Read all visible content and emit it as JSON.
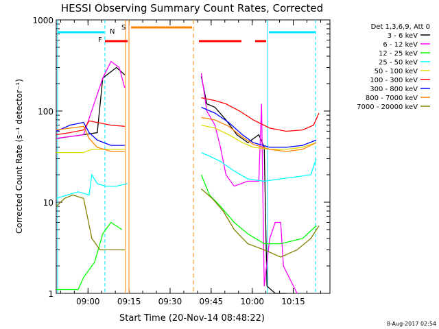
{
  "chart_data": {
    "type": "line",
    "title": "HESSI Observing Summary Count Rates, Corrected",
    "xlabel": "Start Time (20-Nov-14 08:48:22)",
    "ylabel": "Corrected Count Rate (s⁻¹ detector⁻¹)",
    "yscale": "log",
    "ylim": [
      1,
      1000
    ],
    "xlim_minutes": [
      0,
      100
    ],
    "x_ticks": [
      {
        "label": "09:00",
        "t": 11.6
      },
      {
        "label": "09:15",
        "t": 26.6
      },
      {
        "label": "09:30",
        "t": 41.6
      },
      {
        "label": "09:45",
        "t": 56.6
      },
      {
        "label": "10:00",
        "t": 71.6
      },
      {
        "label": "10:15",
        "t": 86.6
      }
    ],
    "y_ticks": [
      {
        "label": "1",
        "v": 1
      },
      {
        "label": "10",
        "v": 10
      },
      {
        "label": "100",
        "v": 100
      },
      {
        "label": "1000",
        "v": 1000
      }
    ],
    "legend_title": "Det 1,3,6,9, Att 0",
    "legend_placement": "right",
    "series": [
      {
        "name": "3 - 6 keV",
        "color": "#000000",
        "points": [
          [
            0,
            50
          ],
          [
            10,
            55
          ],
          [
            15,
            58
          ],
          [
            17,
            230
          ],
          [
            22,
            300
          ],
          [
            25,
            250
          ],
          [
            26,
            0
          ],
          [
            52.5,
            0
          ],
          [
            53,
            240
          ],
          [
            55,
            120
          ],
          [
            58,
            110
          ],
          [
            62,
            80
          ],
          [
            66,
            55
          ],
          [
            70,
            45
          ],
          [
            74,
            55
          ],
          [
            76,
            40
          ],
          [
            77,
            1.2
          ],
          [
            80,
            1.0
          ],
          [
            84,
            1.0
          ]
        ]
      },
      {
        "name": "6 - 12 keV",
        "color": "#ff00ff",
        "points": [
          [
            0,
            50
          ],
          [
            10,
            55
          ],
          [
            17,
            230
          ],
          [
            20,
            350
          ],
          [
            23,
            300
          ],
          [
            25,
            180
          ],
          [
            26,
            0
          ],
          [
            52.5,
            0
          ],
          [
            53,
            260
          ],
          [
            55,
            100
          ],
          [
            58,
            70
          ],
          [
            60,
            40
          ],
          [
            62,
            20
          ],
          [
            65,
            15
          ],
          [
            70,
            17
          ],
          [
            74,
            17
          ],
          [
            75,
            120
          ],
          [
            76,
            1.2
          ],
          [
            78,
            4
          ],
          [
            80,
            6
          ],
          [
            82,
            6
          ],
          [
            83,
            2
          ],
          [
            88,
            1.0
          ]
        ]
      },
      {
        "name": "12 - 25 keV",
        "color": "#00ff00",
        "points": [
          [
            0,
            1.1
          ],
          [
            8,
            1.1
          ],
          [
            10,
            1.5
          ],
          [
            14,
            2.2
          ],
          [
            17,
            4.5
          ],
          [
            20,
            6
          ],
          [
            24,
            5
          ],
          [
            26,
            0
          ],
          [
            52.5,
            0
          ],
          [
            53,
            20
          ],
          [
            56,
            12
          ],
          [
            60,
            9
          ],
          [
            65,
            6
          ],
          [
            70,
            4.5
          ],
          [
            76,
            3.5
          ],
          [
            82,
            3.5
          ],
          [
            90,
            4
          ],
          [
            95,
            5.5
          ]
        ]
      },
      {
        "name": "25 - 50 keV",
        "color": "#00ffff",
        "points": [
          [
            0,
            11
          ],
          [
            4,
            12
          ],
          [
            8,
            13
          ],
          [
            12,
            12
          ],
          [
            13,
            20
          ],
          [
            15,
            16
          ],
          [
            18,
            15
          ],
          [
            22,
            15
          ],
          [
            26,
            16
          ],
          [
            52.5,
            0
          ],
          [
            53,
            35
          ],
          [
            56,
            32
          ],
          [
            60,
            28
          ],
          [
            65,
            22
          ],
          [
            70,
            18
          ],
          [
            76,
            17
          ],
          [
            82,
            18
          ],
          [
            88,
            19
          ],
          [
            93,
            20
          ],
          [
            95,
            30
          ]
        ]
      },
      {
        "name": "50 - 100 keV",
        "color": "#dddd00",
        "points": [
          [
            0,
            35
          ],
          [
            5,
            35
          ],
          [
            10,
            35
          ],
          [
            13,
            38
          ],
          [
            15,
            38
          ],
          [
            20,
            38
          ],
          [
            25,
            38
          ],
          [
            26,
            0
          ],
          [
            52.5,
            0
          ],
          [
            53,
            70
          ],
          [
            58,
            65
          ],
          [
            63,
            55
          ],
          [
            68,
            45
          ],
          [
            72,
            40
          ],
          [
            78,
            38
          ],
          [
            84,
            38
          ],
          [
            90,
            40
          ],
          [
            95,
            45
          ]
        ]
      },
      {
        "name": "100 - 300 keV",
        "color": "#ff0000",
        "points": [
          [
            0,
            55
          ],
          [
            5,
            58
          ],
          [
            10,
            62
          ],
          [
            12,
            78
          ],
          [
            15,
            75
          ],
          [
            20,
            70
          ],
          [
            25,
            68
          ],
          [
            26,
            0
          ],
          [
            52.5,
            0
          ],
          [
            53,
            140
          ],
          [
            58,
            130
          ],
          [
            62,
            120
          ],
          [
            67,
            100
          ],
          [
            72,
            80
          ],
          [
            78,
            65
          ],
          [
            84,
            60
          ],
          [
            90,
            62
          ],
          [
            94,
            70
          ],
          [
            96,
            95
          ]
        ]
      },
      {
        "name": "300 - 800 keV",
        "color": "#0000ff",
        "points": [
          [
            0,
            60
          ],
          [
            5,
            70
          ],
          [
            10,
            75
          ],
          [
            12,
            58
          ],
          [
            15,
            48
          ],
          [
            20,
            42
          ],
          [
            25,
            42
          ],
          [
            26,
            0
          ],
          [
            52.5,
            0
          ],
          [
            53,
            110
          ],
          [
            58,
            95
          ],
          [
            63,
            75
          ],
          [
            68,
            55
          ],
          [
            72,
            45
          ],
          [
            78,
            40
          ],
          [
            84,
            40
          ],
          [
            90,
            42
          ],
          [
            95,
            48
          ]
        ]
      },
      {
        "name": "800 - 7000 keV",
        "color": "#ff8000",
        "points": [
          [
            0,
            62
          ],
          [
            5,
            65
          ],
          [
            10,
            68
          ],
          [
            12,
            50
          ],
          [
            15,
            40
          ],
          [
            20,
            36
          ],
          [
            25,
            36
          ],
          [
            26,
            0
          ],
          [
            52.5,
            0
          ],
          [
            53,
            85
          ],
          [
            58,
            80
          ],
          [
            63,
            68
          ],
          [
            68,
            52
          ],
          [
            72,
            43
          ],
          [
            78,
            38
          ],
          [
            84,
            36
          ],
          [
            90,
            38
          ],
          [
            95,
            45
          ]
        ]
      },
      {
        "name": "7000 - 20000 keV",
        "color": "#808000",
        "points": [
          [
            0,
            9
          ],
          [
            3,
            11
          ],
          [
            6,
            12
          ],
          [
            10,
            11
          ],
          [
            13,
            4
          ],
          [
            16,
            3
          ],
          [
            20,
            3
          ],
          [
            25,
            3
          ],
          [
            26,
            0
          ],
          [
            52.5,
            0
          ],
          [
            53,
            14
          ],
          [
            57,
            11
          ],
          [
            61,
            8
          ],
          [
            65,
            5
          ],
          [
            70,
            3.5
          ],
          [
            76,
            3
          ],
          [
            82,
            2.5
          ],
          [
            88,
            3
          ],
          [
            93,
            4
          ],
          [
            96,
            5.5
          ]
        ]
      }
    ],
    "markers": [
      {
        "label": "F",
        "color": "#ff0000"
      },
      {
        "label": "N",
        "color": "#00ccff"
      },
      {
        "label": "S",
        "color": "#ff8000"
      }
    ],
    "footer_timestamp": "8-Aug-2017 02:54"
  }
}
